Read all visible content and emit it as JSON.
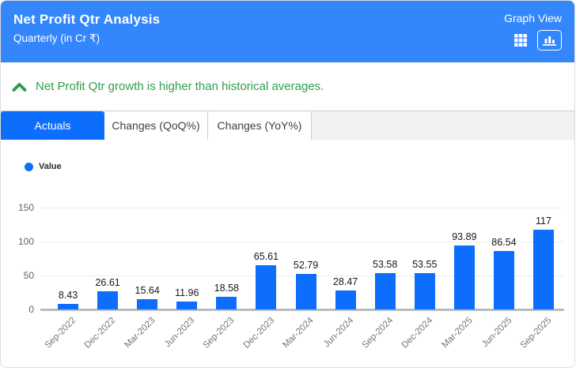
{
  "header": {
    "title": "Net Profit Qtr Analysis",
    "subtitle": "Quarterly (in Cr ₹)",
    "view_label": "Graph View",
    "bg_color": "#3486fd"
  },
  "insight": {
    "text": "Net Profit Qtr growth is higher than historical averages.",
    "color": "#2f9e4a"
  },
  "tabs": [
    {
      "label": "Actuals",
      "active": true
    },
    {
      "label": "Changes (QoQ%)",
      "active": false
    },
    {
      "label": "Changes (YoY%)",
      "active": false
    }
  ],
  "legend": {
    "label": "Value",
    "color": "#0d6efd"
  },
  "chart_data": {
    "type": "bar",
    "title": "Net Profit Qtr Analysis",
    "categories": [
      "Sep-2022",
      "Dec-2022",
      "Mar-2023",
      "Jun-2023",
      "Sep-2023",
      "Dec-2023",
      "Mar-2024",
      "Jun-2024",
      "Sep-2024",
      "Dec-2024",
      "Mar-2025",
      "Jun-2025",
      "Sep-2025"
    ],
    "values": [
      8.43,
      26.61,
      15.64,
      11.96,
      18.58,
      65.61,
      52.79,
      28.47,
      53.58,
      53.55,
      93.89,
      86.54,
      117
    ],
    "xlabel": "",
    "ylabel": "",
    "ylim": [
      0,
      150
    ],
    "yticks": [
      0,
      50,
      100,
      150
    ],
    "bar_color": "#0d6efd",
    "grid": true,
    "legend_position": "top-left",
    "legend_entries": [
      "Value"
    ]
  }
}
